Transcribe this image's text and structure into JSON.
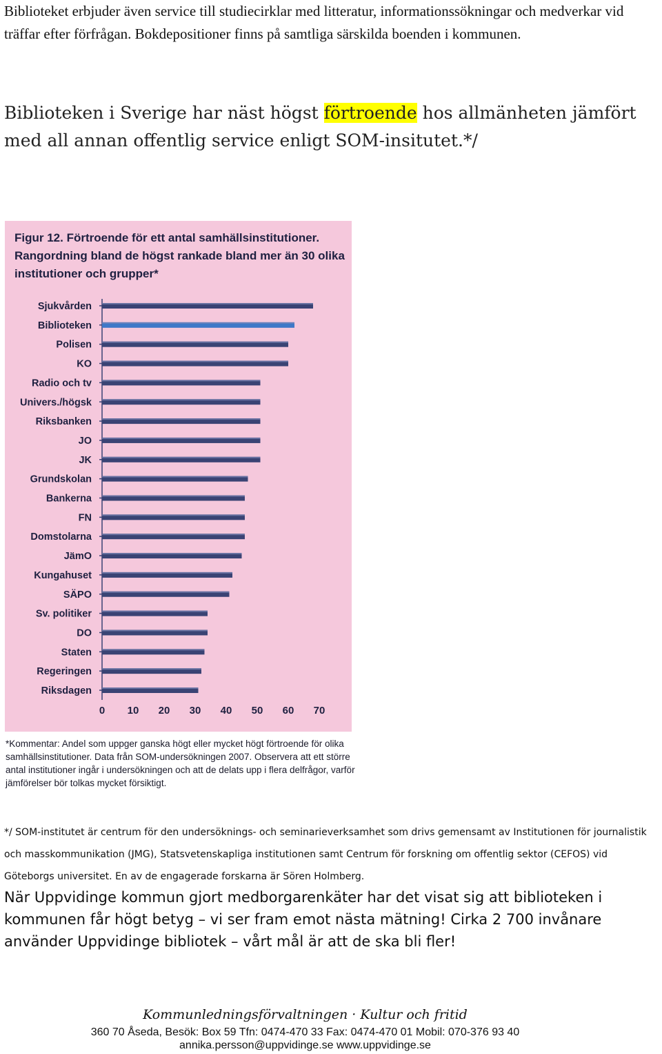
{
  "intro": "Biblioteket erbjuder även service till studiecirklar med litteratur, informationssökningar och medverkar vid träffar efter förfrågan. Bokdepositioner finns på samtliga särskilda boenden i kommunen.",
  "headline": {
    "before": "Biblioteken i Sverige har näst högst ",
    "highlight": "förtroende",
    "after": " hos allmänheten jämfört med all annan offentlig service enligt SOM-insitutet.*/"
  },
  "figure": {
    "title": "Figur 12. Förtroende för ett antal samhällsinstitutioner. Rangordning bland de högst rankade bland mer än 30 olika institutioner och grupper*",
    "footnote": "*Kommentar: Andel som uppger ganska högt eller mycket högt förtroende för olika samhällsinstitutioner. Data från SOM-undersökningen 2007. Observera att ett större antal institutioner ingår i undersökningen och att de delats upp i flera delfrågor, varför jämförelser bör tolkas mycket försiktigt."
  },
  "chart_data": {
    "type": "bar",
    "orientation": "horizontal",
    "categories": [
      "Sjukvården",
      "Biblioteken",
      "Polisen",
      "KO",
      "Radio och tv",
      "Univers./högsk",
      "Riksbanken",
      "JO",
      "JK",
      "Grundskolan",
      "Bankerna",
      "FN",
      "Domstolarna",
      "JämO",
      "Kungahuset",
      "SÄPO",
      "Sv. politiker",
      "DO",
      "Staten",
      "Regeringen",
      "Riksdagen"
    ],
    "values": [
      68,
      62,
      60,
      60,
      51,
      51,
      51,
      51,
      51,
      47,
      46,
      46,
      46,
      45,
      42,
      41,
      34,
      34,
      33,
      32,
      31
    ],
    "highlight_index": 1,
    "xlim": [
      0,
      70
    ],
    "xticks": [
      "0",
      "10",
      "20",
      "30",
      "40",
      "50",
      "60",
      "70"
    ],
    "grid": false,
    "colors": {
      "bar": "#3a4374",
      "highlight": "#3f78c8",
      "background": "#f5c8dc"
    }
  },
  "som_note": "*/ SOM-institutet är centrum för den undersöknings- och seminarieverksamhet som drivs gemensamt av Institutionen för journalistik och masskommunikation (JMG), Statsvetenskapliga institutionen samt Centrum för forskning om offentlig sektor (CEFOS) vid Göteborgs universitet. En av de engagerade forskarna är Sören Holmberg.",
  "body_text": "När Uppvidinge kommun gjort medborgarenkäter har det visat sig att biblioteken i kommunen får högt betyg – vi ser fram emot nästa mätning! Cirka 2 700 invånare använder Uppvidinge bibliotek – vårt mål är att de ska bli fler!",
  "footer": {
    "department": "Kommunledningsförvaltningen · Kultur och fritid",
    "address": "360 70 Åseda, Besök: Box 59 Tfn: 0474-470 33 Fax: 0474-470 01 Mobil: 070-376 93 40",
    "contact": "annika.persson@uppvidinge.se www.uppvidinge.se"
  }
}
